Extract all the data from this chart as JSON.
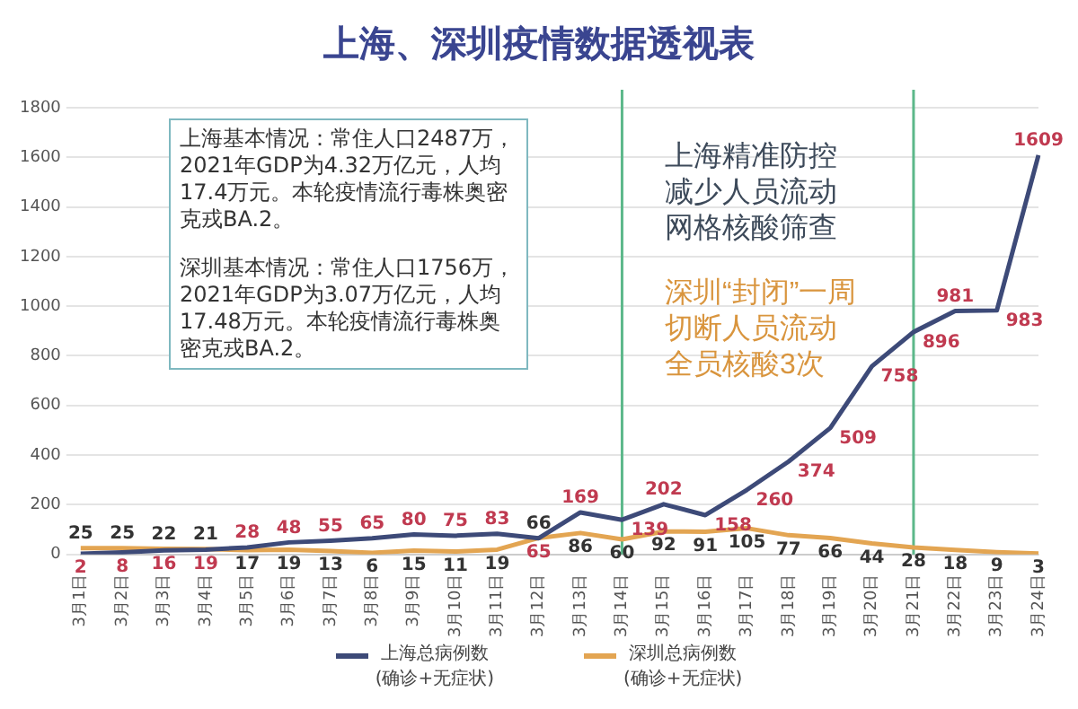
{
  "chart_data": {
    "type": "line",
    "title": "上海、深圳疫情数据透视表",
    "categories": [
      "3月1日",
      "3月2日",
      "3月3日",
      "3月4日",
      "3月5日",
      "3月6日",
      "3月7日",
      "3月8日",
      "3月9日",
      "3月10日",
      "3月11日",
      "3月12日",
      "3月13日",
      "3月14日",
      "3月15日",
      "3月16日",
      "3月17日",
      "3月18日",
      "3月19日",
      "3月20日",
      "3月21日",
      "3月22日",
      "3月23日",
      "3月24日"
    ],
    "series": [
      {
        "name": "上海总病例数\n(确诊+无症状)",
        "color": "#3d4a78",
        "values": [
          2,
          8,
          16,
          19,
          28,
          48,
          55,
          65,
          80,
          75,
          83,
          65,
          169,
          139,
          202,
          158,
          260,
          374,
          509,
          758,
          896,
          981,
          983,
          1609
        ]
      },
      {
        "name": "深圳总病例数\n(确诊+无症状)",
        "color": "#e3a552",
        "values": [
          25,
          25,
          22,
          21,
          17,
          19,
          13,
          6,
          15,
          11,
          19,
          66,
          86,
          60,
          92,
          91,
          105,
          77,
          66,
          44,
          28,
          18,
          9,
          3
        ]
      }
    ],
    "ylim": [
      0,
      1800
    ],
    "yticks": [
      0,
      200,
      400,
      600,
      800,
      1000,
      1200,
      1400,
      1600,
      1800
    ],
    "grid": "y",
    "legend": "bottom",
    "marker": "none",
    "data_labels": true,
    "ref_lines": [
      {
        "axis": "x",
        "value": "3月14日",
        "color": "#5cb88a"
      },
      {
        "axis": "x",
        "value": "3月21日",
        "color": "#5cb88a"
      }
    ],
    "annotations": [
      "上海基本情况：常住人口2487万，2021年GDP为4.32万亿元，人均17.4万元。本轮疫情流行毒株奥密克戎BA.2。",
      "深圳基本情况：常住人口1756万， 2021年GDP为3.07万亿元，人均17.48万元。本轮疫情流行毒株奥密克戎BA.2。",
      "上海精准防控减少人员流动网格核酸筛查",
      "深圳“封闭”一周切断人员流动全员核酸3次"
    ]
  }
}
